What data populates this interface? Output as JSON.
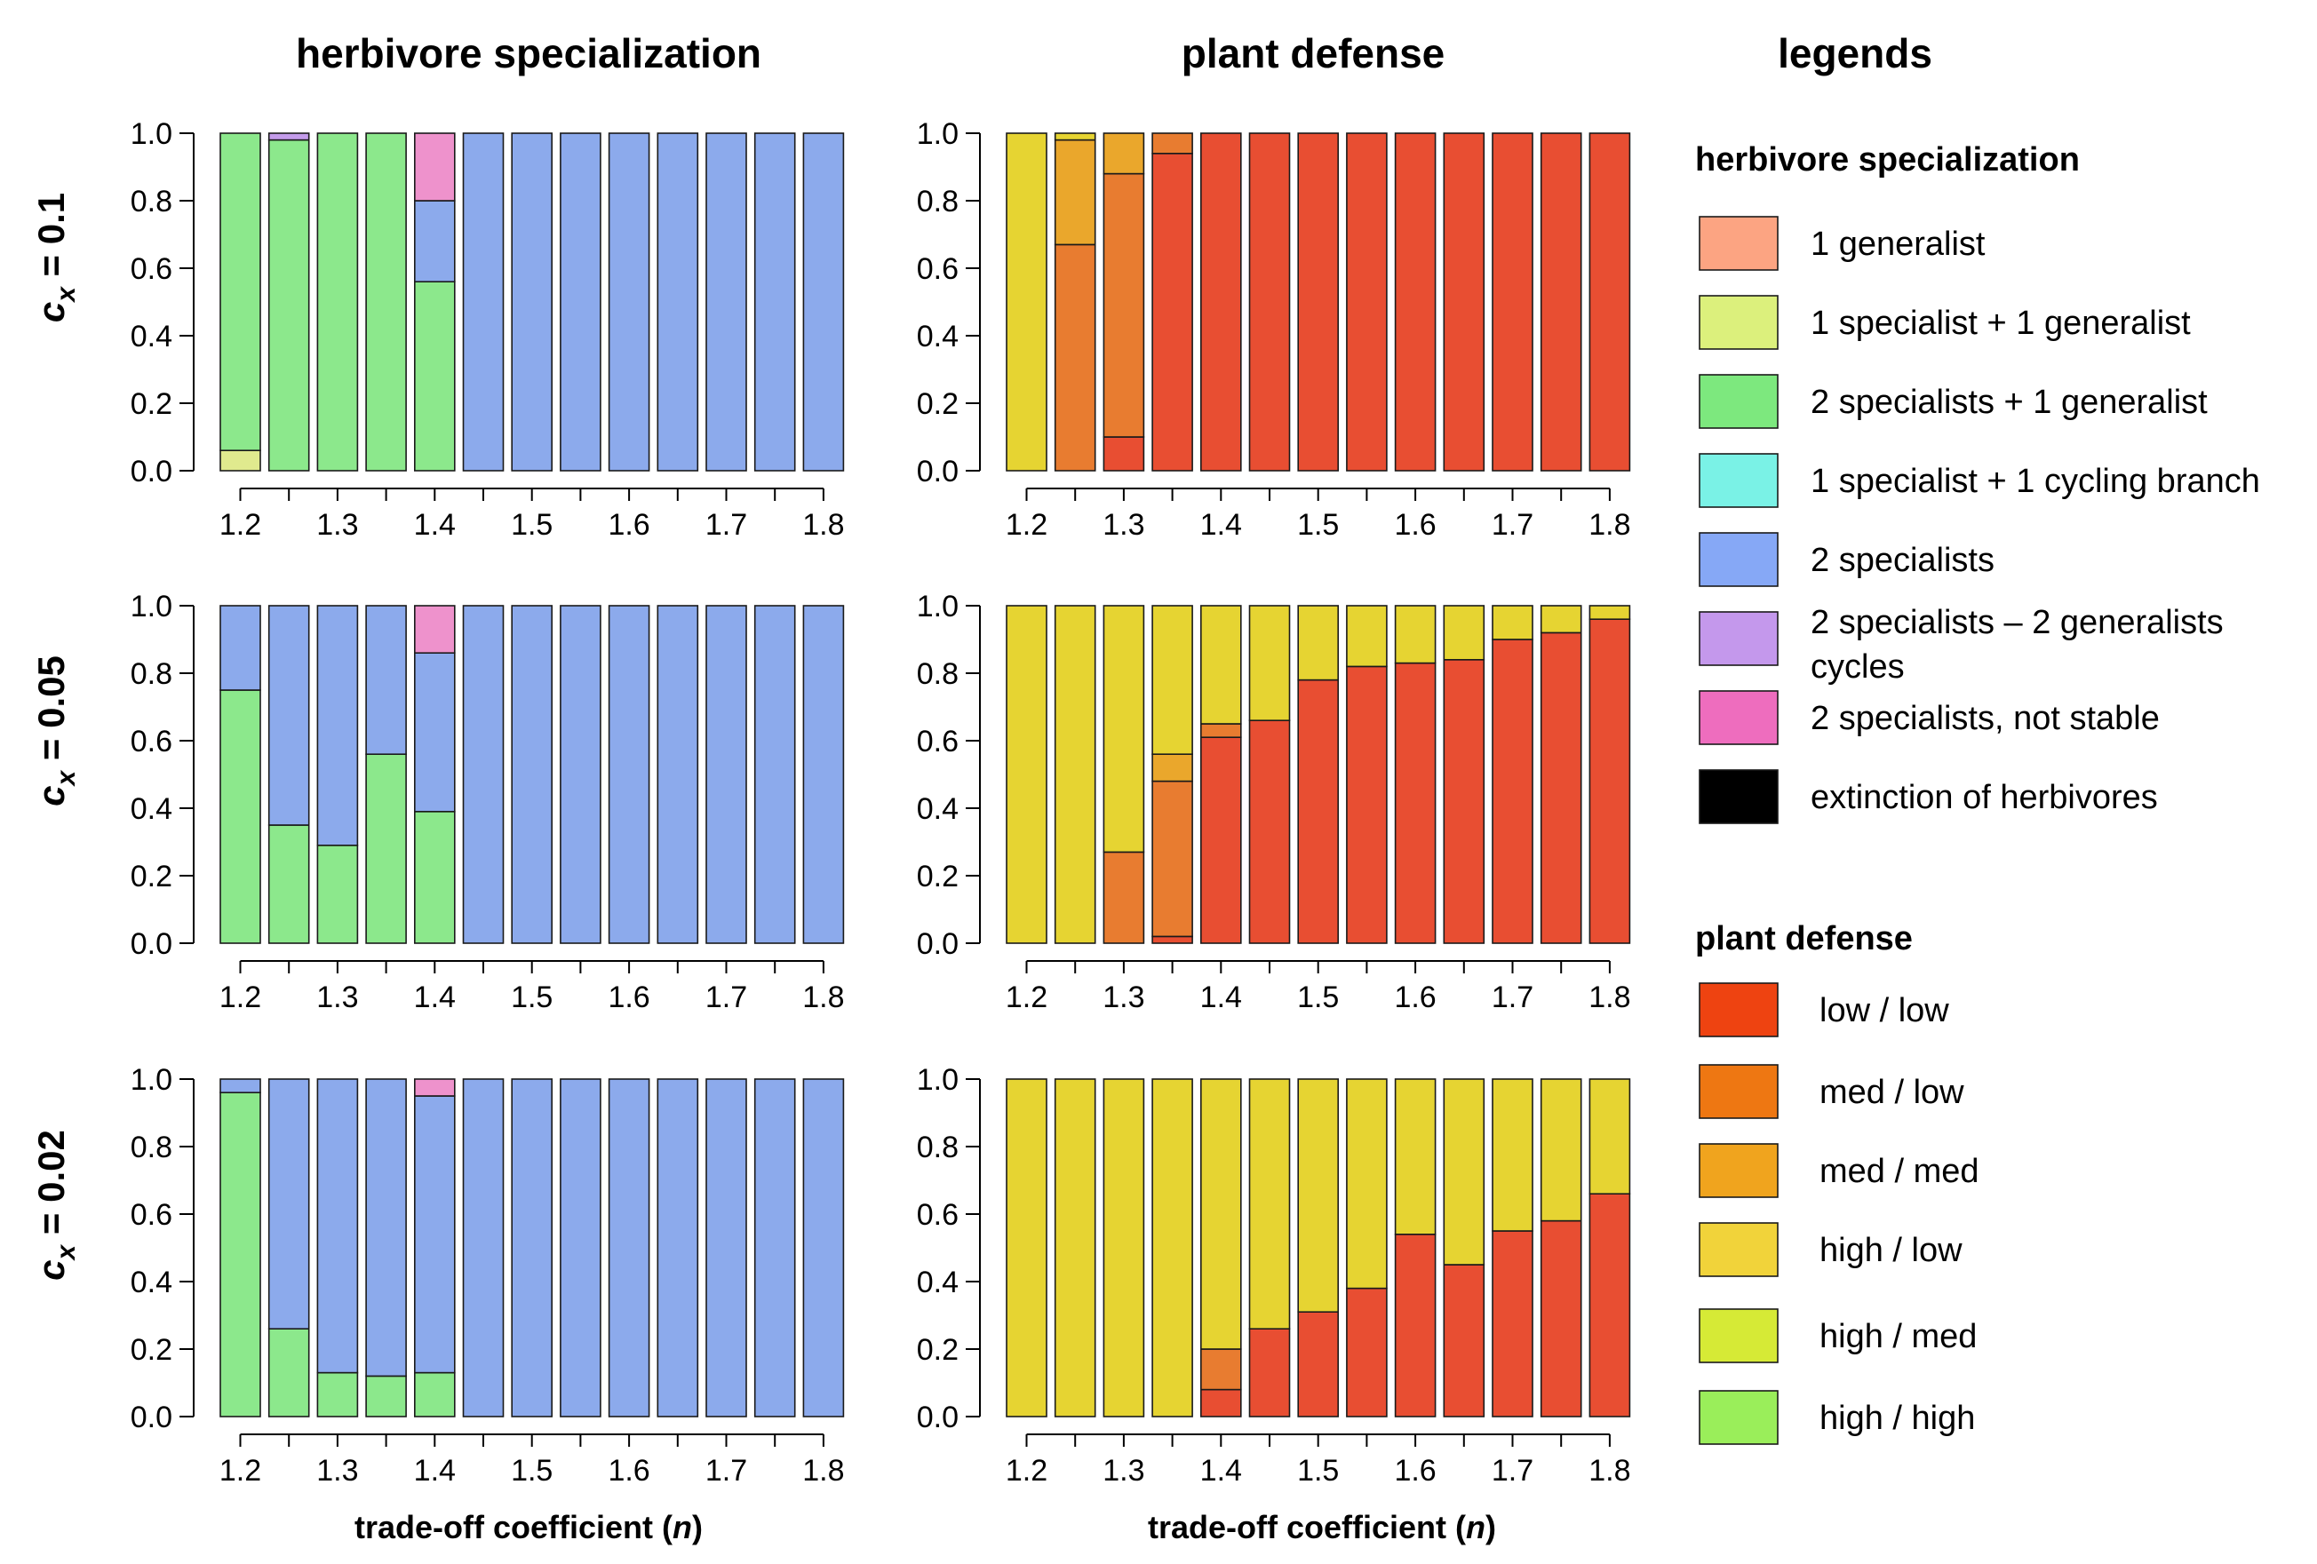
{
  "titles": {
    "herbivore": "herbivore specialization",
    "plant": "plant defense",
    "legends": "legends"
  },
  "xlabel": {
    "prefix": "trade-off coefficient (",
    "symbol": "n",
    "suffix": ")"
  },
  "rows": [
    {
      "var": "c",
      "sub": "x",
      "eq": " = 0.1"
    },
    {
      "var": "c",
      "sub": "x",
      "eq": " = 0.05"
    },
    {
      "var": "c",
      "sub": "x",
      "eq": " = 0.02"
    }
  ],
  "legend": {
    "herbivore_title": "herbivore specialization",
    "herbivore": [
      {
        "key": "1g",
        "label": "1 generalist",
        "color": "#FCA482"
      },
      {
        "key": "1s1g",
        "label": "1 specialist + 1 generalist",
        "color": "#DCF07C"
      },
      {
        "key": "2s1g",
        "label": "2 specialists + 1 generalist",
        "color": "#7DE87E"
      },
      {
        "key": "1s1c",
        "label": "1 specialist + 1 cycling branch",
        "color": "#7AF2E6"
      },
      {
        "key": "2s",
        "label": "2 specialists",
        "color": "#86A8F6"
      },
      {
        "key": "2s2g",
        "label": "2 specialists – 2 generalists",
        "label2": "cycles",
        "color": "#C498EC"
      },
      {
        "key": "2sns",
        "label": "2 specialists, not stable",
        "color": "#EE6DBE"
      },
      {
        "key": "ext",
        "label": "extinction of herbivores",
        "color": "#000000"
      }
    ],
    "plant_title": "plant defense",
    "plant": [
      {
        "key": "ll",
        "label": "low / low",
        "color": "#EE4311"
      },
      {
        "key": "ml",
        "label": "med / low",
        "color": "#EE7712"
      },
      {
        "key": "mm",
        "label": "med / med",
        "color": "#F0A41E"
      },
      {
        "key": "hl",
        "label": "high / low",
        "color": "#F1D33A"
      },
      {
        "key": "hm",
        "label": "high / med",
        "color": "#D6EA36"
      },
      {
        "key": "hh",
        "label": "high / high",
        "color": "#9AEE5A"
      }
    ]
  },
  "chart_data": [
    {
      "type": "bar",
      "stacked": true,
      "panel": "herbivore specialization",
      "row": "c_x = 0.1",
      "x": [
        1.2,
        1.25,
        1.3,
        1.35,
        1.4,
        1.45,
        1.5,
        1.55,
        1.6,
        1.65,
        1.7,
        1.75,
        1.8
      ],
      "x_ticks": [
        "1.2",
        "1.3",
        "1.4",
        "1.5",
        "1.6",
        "1.7",
        "1.8"
      ],
      "y_ticks": [
        "0.0",
        "0.2",
        "0.4",
        "0.6",
        "0.8",
        "1.0"
      ],
      "ylim": [
        0,
        1
      ],
      "series": [
        {
          "key": "1s1g",
          "color": "#E0EA8E",
          "values": [
            0.06,
            0,
            0,
            0,
            0,
            0,
            0,
            0,
            0,
            0,
            0,
            0,
            0
          ]
        },
        {
          "key": "2s1g",
          "color": "#8CE88C",
          "values": [
            0.94,
            0.98,
            1.0,
            1.0,
            0.56,
            0,
            0,
            0,
            0,
            0,
            0,
            0,
            0
          ]
        },
        {
          "key": "2s",
          "color": "#8CAAEC",
          "values": [
            0,
            0,
            0,
            0,
            0.24,
            1.0,
            1.0,
            1.0,
            1.0,
            1.0,
            1.0,
            1.0,
            1.0
          ]
        },
        {
          "key": "2s2g",
          "color": "#C49CEA",
          "values": [
            0,
            0.02,
            0,
            0,
            0,
            0,
            0,
            0,
            0,
            0,
            0,
            0,
            0
          ]
        },
        {
          "key": "2sns",
          "color": "#EE92CC",
          "values": [
            0,
            0,
            0,
            0,
            0.2,
            0,
            0,
            0,
            0,
            0,
            0,
            0,
            0
          ]
        }
      ]
    },
    {
      "type": "bar",
      "stacked": true,
      "panel": "plant defense",
      "row": "c_x = 0.1",
      "x": [
        1.2,
        1.25,
        1.3,
        1.35,
        1.4,
        1.45,
        1.5,
        1.55,
        1.6,
        1.65,
        1.7,
        1.75,
        1.8
      ],
      "x_ticks": [
        "1.2",
        "1.3",
        "1.4",
        "1.5",
        "1.6",
        "1.7",
        "1.8"
      ],
      "y_ticks": [
        "0.0",
        "0.2",
        "0.4",
        "0.6",
        "0.8",
        "1.0"
      ],
      "ylim": [
        0,
        1
      ],
      "series": [
        {
          "key": "ll",
          "color": "#E84E32",
          "values": [
            0,
            0,
            0.1,
            0.94,
            1.0,
            1.0,
            1.0,
            1.0,
            1.0,
            1.0,
            1.0,
            1.0,
            1.0
          ]
        },
        {
          "key": "ml",
          "color": "#E87C30",
          "values": [
            0,
            0.67,
            0.78,
            0.06,
            0,
            0,
            0,
            0,
            0,
            0,
            0,
            0,
            0
          ]
        },
        {
          "key": "mm",
          "color": "#EAA72C",
          "values": [
            0,
            0.31,
            0.12,
            0,
            0,
            0,
            0,
            0,
            0,
            0,
            0,
            0,
            0
          ]
        },
        {
          "key": "hl",
          "color": "#E6D432",
          "values": [
            1.0,
            0.02,
            0,
            0,
            0,
            0,
            0,
            0,
            0,
            0,
            0,
            0,
            0
          ]
        }
      ]
    },
    {
      "type": "bar",
      "stacked": true,
      "panel": "herbivore specialization",
      "row": "c_x = 0.05",
      "x": [
        1.2,
        1.25,
        1.3,
        1.35,
        1.4,
        1.45,
        1.5,
        1.55,
        1.6,
        1.65,
        1.7,
        1.75,
        1.8
      ],
      "x_ticks": [
        "1.2",
        "1.3",
        "1.4",
        "1.5",
        "1.6",
        "1.7",
        "1.8"
      ],
      "y_ticks": [
        "0.0",
        "0.2",
        "0.4",
        "0.6",
        "0.8",
        "1.0"
      ],
      "ylim": [
        0,
        1
      ],
      "series": [
        {
          "key": "2s1g",
          "color": "#8CE88C",
          "values": [
            0.75,
            0.35,
            0.29,
            0.56,
            0.39,
            0,
            0,
            0,
            0,
            0,
            0,
            0,
            0
          ]
        },
        {
          "key": "2s",
          "color": "#8CAAEC",
          "values": [
            0.25,
            0.65,
            0.71,
            0.44,
            0.47,
            1.0,
            1.0,
            1.0,
            1.0,
            1.0,
            1.0,
            1.0,
            1.0
          ]
        },
        {
          "key": "2sns",
          "color": "#EE92CC",
          "values": [
            0,
            0,
            0,
            0,
            0.14,
            0,
            0,
            0,
            0,
            0,
            0,
            0,
            0
          ]
        }
      ]
    },
    {
      "type": "bar",
      "stacked": true,
      "panel": "plant defense",
      "row": "c_x = 0.05",
      "x": [
        1.2,
        1.25,
        1.3,
        1.35,
        1.4,
        1.45,
        1.5,
        1.55,
        1.6,
        1.65,
        1.7,
        1.75,
        1.8
      ],
      "x_ticks": [
        "1.2",
        "1.3",
        "1.4",
        "1.5",
        "1.6",
        "1.7",
        "1.8"
      ],
      "y_ticks": [
        "0.0",
        "0.2",
        "0.4",
        "0.6",
        "0.8",
        "1.0"
      ],
      "ylim": [
        0,
        1
      ],
      "series": [
        {
          "key": "ll",
          "color": "#E84E32",
          "values": [
            0,
            0,
            0,
            0.02,
            0.61,
            0.66,
            0.78,
            0.82,
            0.83,
            0.84,
            0.9,
            0.92,
            0.96
          ]
        },
        {
          "key": "ml",
          "color": "#E87C30",
          "values": [
            0,
            0,
            0.27,
            0.46,
            0.04,
            0,
            0,
            0,
            0,
            0,
            0,
            0,
            0
          ]
        },
        {
          "key": "mm",
          "color": "#EAA72C",
          "values": [
            0,
            0,
            0,
            0.08,
            0,
            0,
            0,
            0,
            0,
            0,
            0,
            0,
            0
          ]
        },
        {
          "key": "hl",
          "color": "#E6D432",
          "values": [
            1.0,
            1.0,
            0.73,
            0.44,
            0.35,
            0.34,
            0.22,
            0.18,
            0.17,
            0.16,
            0.1,
            0.08,
            0.04
          ]
        }
      ]
    },
    {
      "type": "bar",
      "stacked": true,
      "panel": "herbivore specialization",
      "row": "c_x = 0.02",
      "x": [
        1.2,
        1.25,
        1.3,
        1.35,
        1.4,
        1.45,
        1.5,
        1.55,
        1.6,
        1.65,
        1.7,
        1.75,
        1.8
      ],
      "x_ticks": [
        "1.2",
        "1.3",
        "1.4",
        "1.5",
        "1.6",
        "1.7",
        "1.8"
      ],
      "y_ticks": [
        "0.0",
        "0.2",
        "0.4",
        "0.6",
        "0.8",
        "1.0"
      ],
      "ylim": [
        0,
        1
      ],
      "series": [
        {
          "key": "2s1g",
          "color": "#8CE88C",
          "values": [
            0.96,
            0.26,
            0.13,
            0.12,
            0.13,
            0,
            0,
            0,
            0,
            0,
            0,
            0,
            0
          ]
        },
        {
          "key": "2s",
          "color": "#8CAAEC",
          "values": [
            0.04,
            0.74,
            0.87,
            0.88,
            0.82,
            1.0,
            1.0,
            1.0,
            1.0,
            1.0,
            1.0,
            1.0,
            1.0
          ]
        },
        {
          "key": "2sns",
          "color": "#EE92CC",
          "values": [
            0,
            0,
            0,
            0,
            0.05,
            0,
            0,
            0,
            0,
            0,
            0,
            0,
            0
          ]
        }
      ]
    },
    {
      "type": "bar",
      "stacked": true,
      "panel": "plant defense",
      "row": "c_x = 0.02",
      "x": [
        1.2,
        1.25,
        1.3,
        1.35,
        1.4,
        1.45,
        1.5,
        1.55,
        1.6,
        1.65,
        1.7,
        1.75,
        1.8
      ],
      "x_ticks": [
        "1.2",
        "1.3",
        "1.4",
        "1.5",
        "1.6",
        "1.7",
        "1.8"
      ],
      "y_ticks": [
        "0.0",
        "0.2",
        "0.4",
        "0.6",
        "0.8",
        "1.0"
      ],
      "ylim": [
        0,
        1
      ],
      "series": [
        {
          "key": "ll",
          "color": "#E84E32",
          "values": [
            0,
            0,
            0,
            0,
            0.08,
            0.26,
            0.31,
            0.38,
            0.54,
            0.45,
            0.55,
            0.58,
            0.66
          ]
        },
        {
          "key": "ml",
          "color": "#E87C30",
          "values": [
            0,
            0,
            0,
            0,
            0.12,
            0,
            0,
            0,
            0,
            0,
            0,
            0,
            0
          ]
        },
        {
          "key": "hl",
          "color": "#E6D432",
          "values": [
            1.0,
            1.0,
            1.0,
            1.0,
            0.8,
            0.74,
            0.69,
            0.62,
            0.46,
            0.55,
            0.45,
            0.42,
            0.34
          ]
        }
      ]
    }
  ]
}
